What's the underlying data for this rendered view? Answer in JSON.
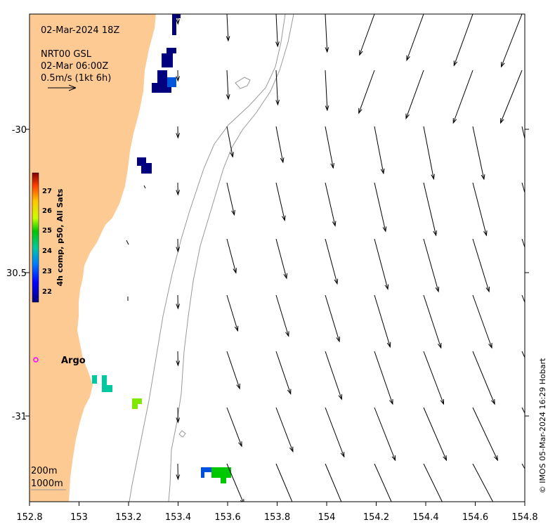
{
  "map": {
    "title": "02-Mar-2024 18Z",
    "product": "NRT00 GSL",
    "product_time": "02-Mar 06:00Z",
    "scale_label": "0.5m/s (1kt 6h)",
    "credit": "© IMOS 05-Mar-2024 16:29 Hobart",
    "argo_label": "Argo",
    "isobath_labels": [
      "200m",
      "1000m"
    ],
    "colors": {
      "land": "#fdca94",
      "argo_marker": "#ff00ff",
      "frame": "#000000"
    }
  },
  "colorbar": {
    "title": "4h comp, p50, All Sats",
    "tick_labels": [
      "22",
      "23",
      "24",
      "25",
      "26",
      "27"
    ]
  },
  "axes": {
    "x_tick_labels": [
      "152.8",
      "153",
      "153.2",
      "153.4",
      "153.6",
      "153.8",
      "154",
      "154.2",
      "154.4",
      "154.6",
      "154.8"
    ],
    "y_tick_labels": [
      "-30",
      "30.5",
      "-31"
    ]
  }
}
